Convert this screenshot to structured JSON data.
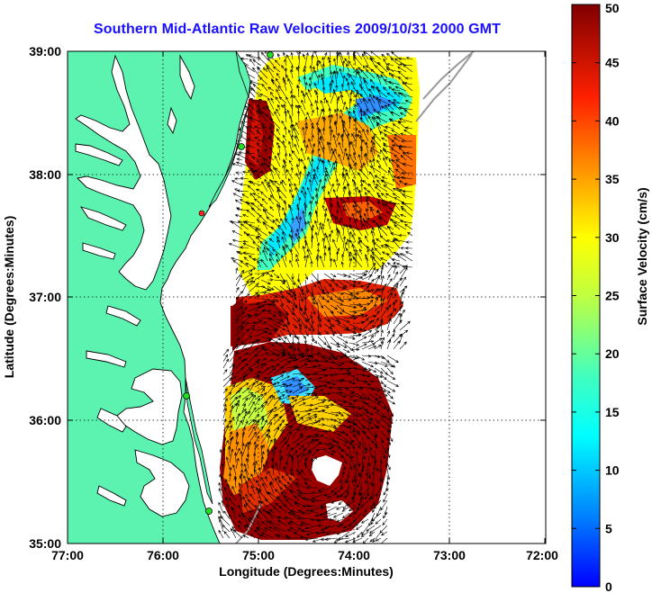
{
  "title": "Southern Mid-Atlantic Raw Velocities 2009/10/31 2000 GMT",
  "xlabel": "Longitude (Degrees:Minutes)",
  "ylabel": "Latitude (Degrees:Minutes)",
  "colorbar": {
    "label": "Surface Velocity (cm/s)",
    "min": 0,
    "max": 50,
    "ticks": [
      "0",
      "5",
      "10",
      "15",
      "20",
      "25",
      "30",
      "35",
      "40",
      "45",
      "50"
    ]
  },
  "chart_data": {
    "type": "heatmap",
    "title": "Southern Mid-Atlantic Raw Velocities 2009/10/31 2000 GMT",
    "xlabel": "Longitude (Degrees:Minutes)",
    "ylabel": "Latitude (Degrees:Minutes)",
    "x_ticks": [
      "77:00",
      "76:00",
      "75:00",
      "74:00",
      "73:00",
      "72:00"
    ],
    "y_ticks": [
      "39:00",
      "38:00",
      "37:00",
      "36:00",
      "35:00"
    ],
    "xlim": [
      -77,
      -72
    ],
    "ylim": [
      35,
      39
    ],
    "grid": true,
    "colormap": "jet",
    "colorbar_range": [
      0,
      50
    ],
    "units": "cm/s"
  },
  "colors": {
    "land": "#5cf3b0",
    "water": "#ffffff",
    "title": "#1a10ff",
    "vectors": "#000000",
    "isobath": "#999999",
    "station": "#22dd22"
  }
}
